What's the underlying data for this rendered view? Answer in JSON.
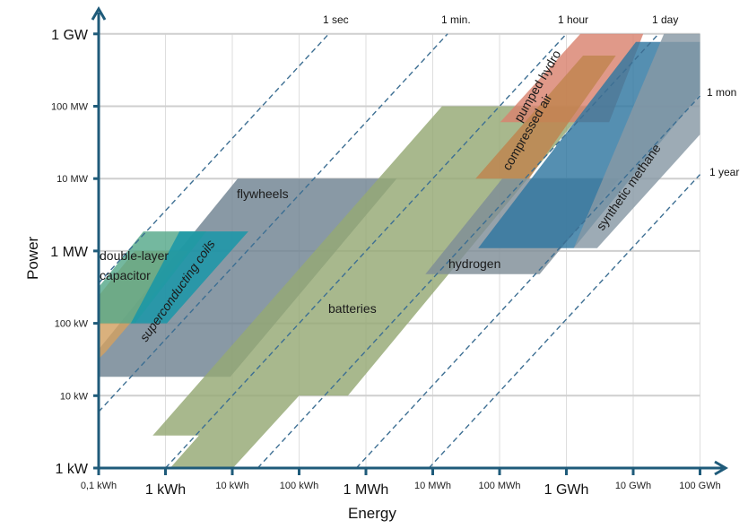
{
  "chart_data": {
    "type": "area",
    "title": "",
    "xlabel": "Energy",
    "ylabel": "Power",
    "x_scale": "log10 kWh",
    "y_scale": "log10 kW",
    "xlim": [
      -1,
      8
    ],
    "ylim": [
      0,
      6
    ],
    "grid": true,
    "x_ticks": [
      {
        "value": -1,
        "label": "0,1 kWh",
        "major": false
      },
      {
        "value": 0,
        "label": "1 kWh",
        "major": true
      },
      {
        "value": 1,
        "label": "10 kWh",
        "major": false
      },
      {
        "value": 2,
        "label": "100 kWh",
        "major": false
      },
      {
        "value": 3,
        "label": "1 MWh",
        "major": true
      },
      {
        "value": 4,
        "label": "10 MWh",
        "major": false
      },
      {
        "value": 5,
        "label": "100 MWh",
        "major": false
      },
      {
        "value": 6,
        "label": "1 GWh",
        "major": true
      },
      {
        "value": 7,
        "label": "10 GWh",
        "major": false
      },
      {
        "value": 8,
        "label": "100 GWh",
        "major": false
      }
    ],
    "y_ticks": [
      {
        "value": 0,
        "label": "1 kW",
        "major": true
      },
      {
        "value": 1,
        "label": "10 kW",
        "major": false
      },
      {
        "value": 2,
        "label": "100 kW",
        "major": false
      },
      {
        "value": 3,
        "label": "1 MW",
        "major": true
      },
      {
        "value": 4,
        "label": "10 MW",
        "major": false
      },
      {
        "value": 5,
        "label": "100 MW",
        "major": false
      },
      {
        "value": 6,
        "label": "1 GW",
        "major": true
      }
    ],
    "durations": [
      {
        "label": "1 sec",
        "log10_hours": -3.556
      },
      {
        "label": "1 min.",
        "log10_hours": -1.778
      },
      {
        "label": "1 hour",
        "log10_hours": 0
      },
      {
        "label": "1 day",
        "log10_hours": 1.38
      },
      {
        "label": "1 mon",
        "log10_hours": 2.857
      },
      {
        "label": "1 year",
        "log10_hours": 3.943
      }
    ],
    "technologies": [
      {
        "name": "flywheels",
        "color": "#6f8391",
        "points": [
          [
            -1,
            1.26
          ],
          [
            0.97,
            1.26
          ],
          [
            3.46,
            4.0
          ],
          [
            1.08,
            4.0
          ],
          [
            -1,
            1.64
          ]
        ]
      },
      {
        "name": "batteries",
        "color": "#95a874",
        "points": [
          [
            -0.19,
            0.45
          ],
          [
            0.5,
            0.45
          ],
          [
            0.07,
            0
          ],
          [
            1.01,
            0
          ],
          [
            2.0,
            1.0
          ],
          [
            2.73,
            1.0
          ],
          [
            6.32,
            5.0
          ],
          [
            4.14,
            5.0
          ]
        ]
      },
      {
        "name": "double-layer capacitor",
        "color": "#d2a060",
        "points": [
          [
            -1,
            1.51
          ],
          [
            -1,
            2.38
          ],
          [
            -0.46,
            3.0
          ],
          [
            0.34,
            3.0
          ],
          [
            -0.53,
            2.0
          ],
          [
            -0.9,
            1.6
          ]
        ]
      },
      {
        "name": "",
        "color": "#55a88a",
        "points": [
          [
            -1,
            2.0
          ],
          [
            -1,
            2.5
          ],
          [
            -0.33,
            3.27
          ],
          [
            0.61,
            3.27
          ],
          [
            -0.46,
            2.0
          ]
        ]
      },
      {
        "name": "superconducting coils",
        "color": "#1596a8",
        "points": [
          [
            -0.52,
            2.0
          ],
          [
            0.21,
            3.27
          ],
          [
            1.24,
            3.27
          ],
          [
            0.02,
            2.0
          ]
        ]
      },
      {
        "name": "hydrogen",
        "color": "#7f8d97",
        "points": [
          [
            3.89,
            2.68
          ],
          [
            5.6,
            2.68
          ],
          [
            6.79,
            4.0
          ],
          [
            5.04,
            4.0
          ]
        ]
      },
      {
        "name": "pumped hydro",
        "color": "#d9826f",
        "points": [
          [
            5.01,
            4.78
          ],
          [
            6.64,
            4.78
          ],
          [
            7.15,
            6
          ],
          [
            6.21,
            6
          ]
        ]
      },
      {
        "name": "compressed air",
        "color": "#c0844e",
        "points": [
          [
            4.64,
            4.0
          ],
          [
            5.44,
            4.0
          ],
          [
            6.74,
            5.7
          ],
          [
            6.25,
            5.7
          ]
        ]
      },
      {
        "name": "",
        "color": "#2f76a0",
        "points": [
          [
            4.68,
            3.04
          ],
          [
            6.11,
            3.04
          ],
          [
            8,
            5.17
          ],
          [
            8,
            5.89
          ],
          [
            7.04,
            5.89
          ]
        ]
      },
      {
        "name": "synthetic methane",
        "color": "#8799a5",
        "points": [
          [
            6.11,
            3.04
          ],
          [
            6.46,
            3.04
          ],
          [
            8,
            4.61
          ],
          [
            8,
            6
          ],
          [
            7.46,
            6
          ]
        ]
      }
    ],
    "annotations": {
      "flywheels": "flywheels",
      "capacitor_line1": "double-layer",
      "capacitor_line2": "capacitor",
      "coils": "superconducting coils",
      "batteries": "batteries",
      "hydrogen": "hydrogen",
      "pumped_hydro": "pumped hydro",
      "compressed_air": "compressed air",
      "methane": "synthetic methane"
    },
    "axis_color": "#1f5b7a"
  }
}
